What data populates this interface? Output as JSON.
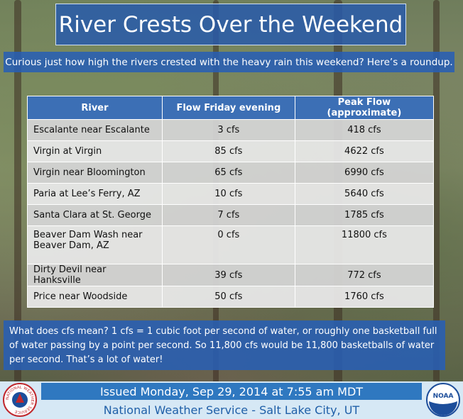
{
  "header": {
    "title": "River Crests Over the Weekend",
    "subtitle": "Curious just how high the rivers crested with the heavy rain this weekend?  Here’s a roundup."
  },
  "table": {
    "columns": [
      "River",
      "Flow Friday evening",
      "Peak Flow (approximate)"
    ],
    "rows": [
      [
        "Escalante near Escalante",
        "3 cfs",
        "418 cfs"
      ],
      [
        "Virgin at Virgin",
        "85 cfs",
        "4622 cfs"
      ],
      [
        "Virgin near Bloomington",
        "65 cfs",
        "6990 cfs"
      ],
      [
        "Paria at Lee’s Ferry, AZ",
        "10 cfs",
        "5640 cfs"
      ],
      [
        "Santa Clara at St. George",
        "7 cfs",
        "1785 cfs"
      ],
      [
        "Beaver Dam Wash near Beaver Dam, AZ",
        "0 cfs",
        "11800 cfs"
      ],
      [
        "Dirty Devil near Hanksville",
        "39 cfs",
        "772 cfs"
      ],
      [
        "Price near Woodside",
        "50 cfs",
        "1760 cfs"
      ]
    ]
  },
  "note": "What does cfs mean?  1 cfs = 1 cubic foot per second of water, or roughly one basketball full of water passing by a point per second.  So 11,800 cfs would be 11,800 basketballs of water per second.  That’s a lot of water!",
  "footer": {
    "issued": "Issued Monday, Sep 29, 2014 at 7:55 am MDT",
    "office": "National Weather Service - Salt Lake City, UT"
  },
  "logos": {
    "nws": "NATIONAL WEATHER SERVICE",
    "noaa": "NOAA"
  }
}
